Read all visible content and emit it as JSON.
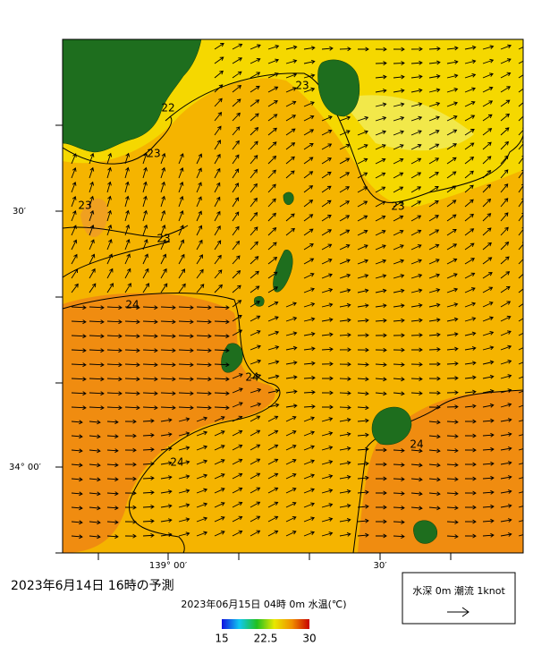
{
  "map": {
    "lat_labels": [
      "30′",
      "34° 00′"
    ],
    "lon_labels": [
      "139° 00′",
      "30′"
    ],
    "contour_labels": [
      "22",
      "23",
      "23",
      "23",
      "23",
      "23",
      "24",
      "24",
      "24",
      "24"
    ],
    "title": "2023年6月14日 16時の予測",
    "subtitle": "2023年06月15日 04時 0m 水温(℃)",
    "legend": "水深 0m 潮流 1knot",
    "colorbar": {
      "range": [
        15,
        30
      ],
      "ticks": [
        15,
        {
          "value": 22.5,
          "label": "22.5"
        },
        30
      ]
    }
  }
}
